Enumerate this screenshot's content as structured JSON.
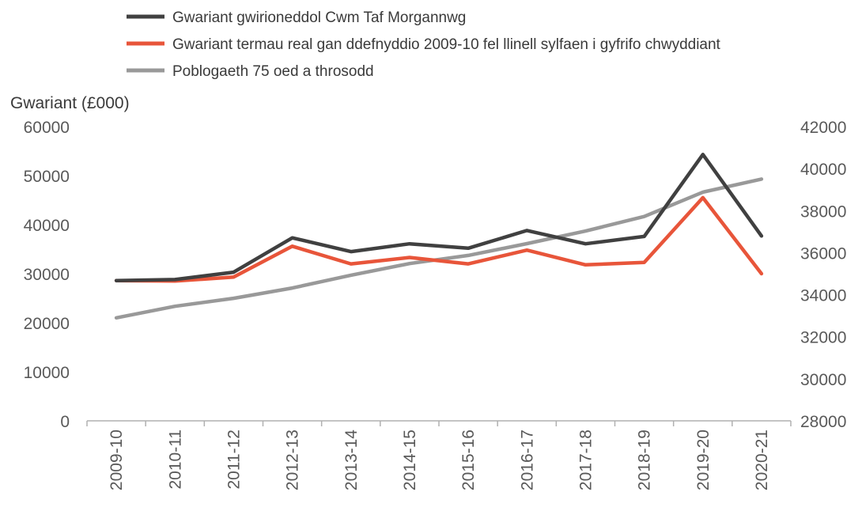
{
  "chart_data": {
    "type": "line",
    "ylabel": "Gwariant (£000)",
    "categories": [
      "2009-10",
      "2010-11",
      "2011-12",
      "2012-13",
      "2013-14",
      "2014-15",
      "2015-16",
      "2016-17",
      "2017-18",
      "2018-19",
      "2019-20",
      "2020-21"
    ],
    "ylim_left": [
      0,
      60000
    ],
    "yticks_left": [
      "0",
      "10000",
      "20000",
      "30000",
      "40000",
      "50000",
      "60000"
    ],
    "ylim_right": [
      28000,
      42000
    ],
    "yticks_right": [
      "28000",
      "30000",
      "32000",
      "34000",
      "36000",
      "38000",
      "40000",
      "42000"
    ],
    "grid": false,
    "legend_position": "top",
    "series": [
      {
        "name": "Gwariant gwirioneddol Cwm Taf Morgannwg",
        "axis": "left",
        "color": "#404040",
        "values": [
          28600,
          28800,
          30300,
          37300,
          34500,
          36100,
          35200,
          38800,
          36100,
          37600,
          54300,
          37700
        ]
      },
      {
        "name": "Gwariant termau real gan ddefnyddio 2009-10 fel llinell sylfaen i gyfrifo chwyddiant",
        "axis": "left",
        "color": "#e8553a",
        "values": [
          28600,
          28500,
          29300,
          35600,
          32000,
          33300,
          32000,
          34800,
          31800,
          32300,
          45500,
          30000
        ]
      },
      {
        "name": "Poblogaeth 75 oed a throsodd",
        "axis": "right",
        "color": "#999999",
        "values": [
          32900,
          33450,
          33830,
          34320,
          34930,
          35480,
          35870,
          36430,
          37030,
          37720,
          38880,
          39500
        ]
      }
    ]
  }
}
